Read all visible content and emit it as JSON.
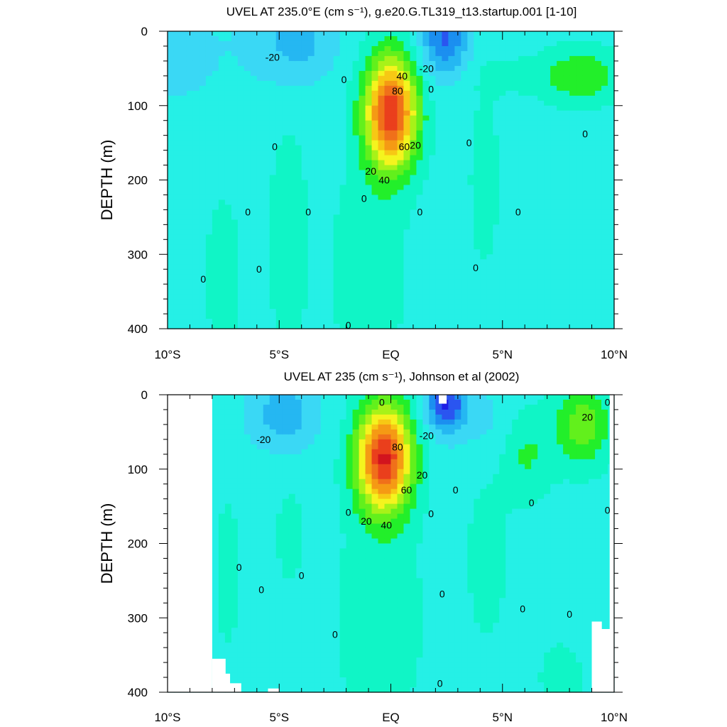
{
  "chart_data": [
    {
      "type": "heatmap",
      "subtype": "filled-contour",
      "title": "UVEL AT 235.0°E (cm s⁻¹), g.e20.G.TL319_t13.startup.001 [1-10]",
      "xlabel": "",
      "ylabel": "DEPTH (m)",
      "x_ticks": [
        "10°S",
        "5°S",
        "EQ",
        "5°N",
        "10°N"
      ],
      "x_tick_values": [
        -10,
        -5,
        0,
        5,
        10
      ],
      "y_ticks": [
        "0",
        "100",
        "200",
        "300",
        "400"
      ],
      "y_tick_values": [
        0,
        100,
        200,
        300,
        400
      ],
      "xlim": [
        -10,
        10
      ],
      "ylim": [
        400,
        0
      ],
      "y_inverted": true,
      "contour_interval": 10,
      "features": [
        {
          "kind": "eastward undercurrent core",
          "lat": 0,
          "depth": 110,
          "max_value": 90
        },
        {
          "kind": "westward surface flow",
          "lat": 2.5,
          "depth": 10,
          "min_value": -40
        },
        {
          "kind": "westward surface flow",
          "lat": -4,
          "depth": 10,
          "min_value": -20
        }
      ],
      "contour_labels": [
        {
          "text": "-20",
          "lat": -5.3,
          "depth": 35
        },
        {
          "text": "-20",
          "lat": 1.6,
          "depth": 50
        },
        {
          "text": "0",
          "lat": -2.1,
          "depth": 65
        },
        {
          "text": "40",
          "lat": 0.5,
          "depth": 60
        },
        {
          "text": "80",
          "lat": 0.3,
          "depth": 80
        },
        {
          "text": "0",
          "lat": 1.8,
          "depth": 78
        },
        {
          "text": "0",
          "lat": 8.7,
          "depth": 138
        },
        {
          "text": "0",
          "lat": -5.2,
          "depth": 155
        },
        {
          "text": "60",
          "lat": 0.6,
          "depth": 155
        },
        {
          "text": "20",
          "lat": 1.1,
          "depth": 153
        },
        {
          "text": "0",
          "lat": 3.5,
          "depth": 150
        },
        {
          "text": "20",
          "lat": -0.9,
          "depth": 188
        },
        {
          "text": "40",
          "lat": -0.3,
          "depth": 200
        },
        {
          "text": "0",
          "lat": -1.2,
          "depth": 225
        },
        {
          "text": "0",
          "lat": -6.4,
          "depth": 243
        },
        {
          "text": "0",
          "lat": -3.7,
          "depth": 243
        },
        {
          "text": "0",
          "lat": 1.3,
          "depth": 243
        },
        {
          "text": "0",
          "lat": 5.7,
          "depth": 243
        },
        {
          "text": "0",
          "lat": -5.9,
          "depth": 320
        },
        {
          "text": "0",
          "lat": 3.8,
          "depth": 318
        },
        {
          "text": "0",
          "lat": -8.4,
          "depth": 333
        },
        {
          "text": "0",
          "lat": -1.9,
          "depth": 395
        }
      ]
    },
    {
      "type": "heatmap",
      "subtype": "filled-contour",
      "title": "UVEL AT 235 (cm s⁻¹), Johnson et al (2002)",
      "xlabel": "",
      "ylabel": "DEPTH (m)",
      "x_ticks": [
        "10°S",
        "5°S",
        "EQ",
        "5°N",
        "10°N"
      ],
      "x_tick_values": [
        -10,
        -5,
        0,
        5,
        10
      ],
      "y_ticks": [
        "0",
        "100",
        "200",
        "300",
        "400"
      ],
      "y_tick_values": [
        0,
        100,
        200,
        300,
        400
      ],
      "xlim": [
        -10,
        10
      ],
      "ylim": [
        400,
        0
      ],
      "y_inverted": true,
      "contour_interval": 10,
      "features": [
        {
          "kind": "eastward undercurrent core",
          "lat": -0.3,
          "depth": 85,
          "max_value": 90
        },
        {
          "kind": "westward surface flow",
          "lat": 2.5,
          "depth": 15,
          "min_value": -50
        },
        {
          "kind": "westward surface flow",
          "lat": -4.8,
          "depth": 25,
          "min_value": -20
        },
        {
          "kind": "eastward surface flow",
          "lat": 8.5,
          "depth": 40,
          "max_value": 30
        }
      ],
      "contour_labels": [
        {
          "text": "0",
          "lat": -0.4,
          "depth": 10
        },
        {
          "text": "0",
          "lat": 9.7,
          "depth": 10
        },
        {
          "text": "20",
          "lat": 8.8,
          "depth": 30
        },
        {
          "text": "-20",
          "lat": 1.6,
          "depth": 55
        },
        {
          "text": "-20",
          "lat": -5.7,
          "depth": 60
        },
        {
          "text": "80",
          "lat": 0.3,
          "depth": 70
        },
        {
          "text": "20",
          "lat": 1.4,
          "depth": 108
        },
        {
          "text": "0",
          "lat": 2.9,
          "depth": 128
        },
        {
          "text": "60",
          "lat": 0.7,
          "depth": 128
        },
        {
          "text": "0",
          "lat": 6.3,
          "depth": 145
        },
        {
          "text": "0",
          "lat": 9.7,
          "depth": 155
        },
        {
          "text": "0",
          "lat": -1.9,
          "depth": 158
        },
        {
          "text": "0",
          "lat": 1.8,
          "depth": 160
        },
        {
          "text": "20",
          "lat": -1.1,
          "depth": 170
        },
        {
          "text": "40",
          "lat": -0.2,
          "depth": 175
        },
        {
          "text": "0",
          "lat": -6.8,
          "depth": 232
        },
        {
          "text": "0",
          "lat": -4.0,
          "depth": 243
        },
        {
          "text": "0",
          "lat": -5.8,
          "depth": 262
        },
        {
          "text": "0",
          "lat": 2.3,
          "depth": 268
        },
        {
          "text": "0",
          "lat": 5.9,
          "depth": 288
        },
        {
          "text": "0",
          "lat": 8.0,
          "depth": 295
        },
        {
          "text": "0",
          "lat": -2.5,
          "depth": 322
        },
        {
          "text": "0",
          "lat": 2.2,
          "depth": 388
        }
      ]
    }
  ]
}
